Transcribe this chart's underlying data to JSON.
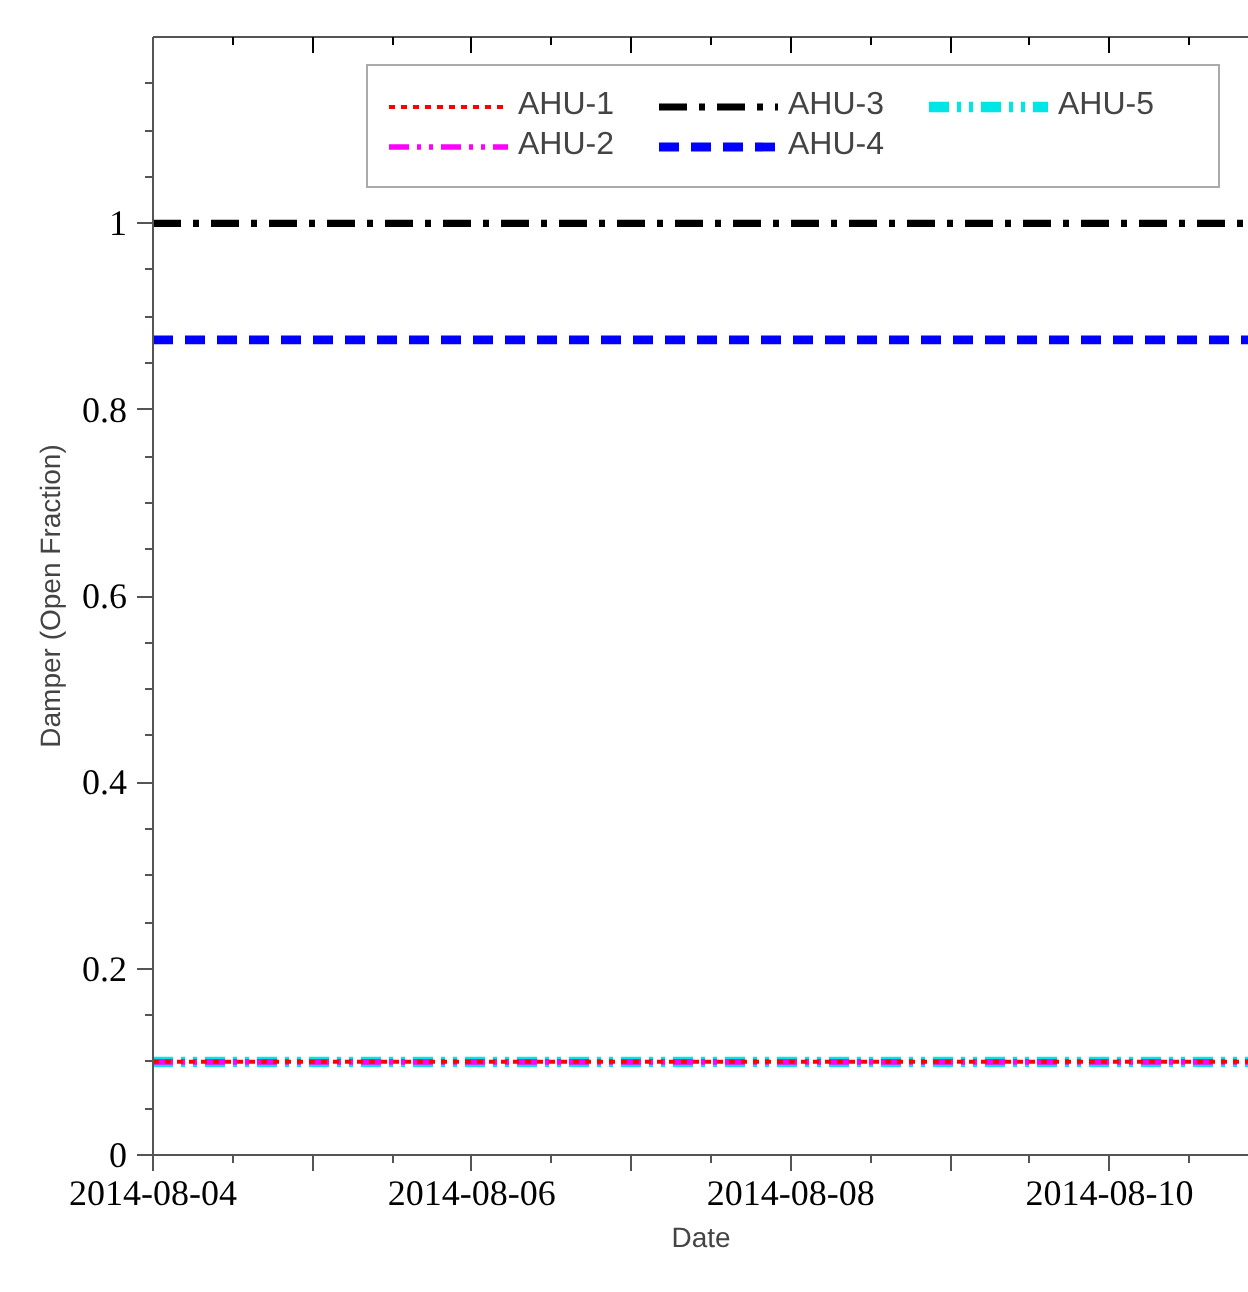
{
  "chart_data": {
    "type": "line",
    "xlabel": "Date",
    "ylabel": "Damper (Open Fraction)",
    "x": [
      "2014-08-04",
      "2014-08-10T21:00"
    ],
    "series": [
      {
        "name": "AHU-1",
        "color": "#ff0000",
        "values": [
          0.1,
          0.1
        ],
        "line_style": "dotted"
      },
      {
        "name": "AHU-2",
        "color": "#ff00ff",
        "values": [
          0.1,
          0.1
        ],
        "line_style": "dashdotdot"
      },
      {
        "name": "AHU-3",
        "color": "#000000",
        "values": [
          1,
          1
        ],
        "line_style": "dashdot"
      },
      {
        "name": "AHU-4",
        "color": "#0000ff",
        "values": [
          0.875,
          0.875
        ],
        "line_style": "dashed"
      },
      {
        "name": "AHU-5",
        "color": "#00e5e5",
        "values": [
          0.1,
          0.1
        ],
        "line_style": "dashdotdot"
      }
    ],
    "xlim": [
      "2014-08-04",
      "2014-08-10T21:00"
    ],
    "xticks": [
      {
        "value": "2014-08-04",
        "label": "2014-08-04"
      },
      {
        "value": "2014-08-05",
        "label": null
      },
      {
        "value": "2014-08-06",
        "label": "2014-08-06"
      },
      {
        "value": "2014-08-07",
        "label": null
      },
      {
        "value": "2014-08-08",
        "label": "2014-08-08"
      },
      {
        "value": "2014-08-09",
        "label": null
      },
      {
        "value": "2014-08-10",
        "label": "2014-08-10"
      }
    ],
    "ylim": [
      0,
      1.2
    ],
    "yticks": [
      0,
      0.2,
      0.4,
      0.6,
      0.8,
      1
    ],
    "grid": false,
    "legend": "top right",
    "marker": "none"
  }
}
